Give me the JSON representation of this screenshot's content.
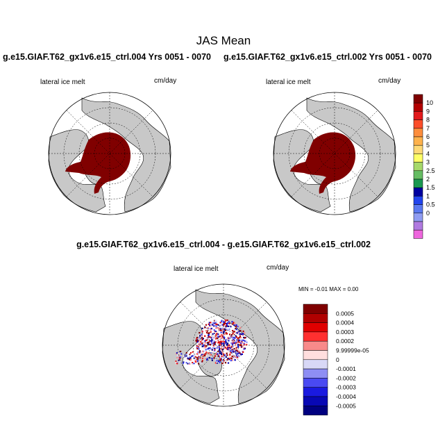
{
  "title": "JAS Mean",
  "panels": [
    {
      "title": "g.e15.GIAF.T62_gx1v6.e15_ctrl.004  Yrs 0051 - 0070",
      "variable": "lateral ice melt",
      "units": "cm/day"
    },
    {
      "title": "g.e15.GIAF.T62_gx1v6.e15_ctrl.002  Yrs 0051 - 0070",
      "variable": "lateral ice melt",
      "units": "cm/day"
    }
  ],
  "diff_panel": {
    "title": "g.e15.GIAF.T62_gx1v6.e15_ctrl.004 - g.e15.GIAF.T62_gx1v6.e15_ctrl.002",
    "variable": "lateral ice melt",
    "units": "cm/day",
    "minmax": "MIN =  -0.01 MAX =   0.00"
  },
  "colorbar_top": {
    "labels": [
      "10",
      "9",
      "8",
      "7",
      "6",
      "5",
      "4",
      "3",
      "2.5",
      "2",
      "1.5",
      "1",
      "0.5",
      "0"
    ],
    "colors": [
      "#7f0000",
      "#b30000",
      "#e31a1c",
      "#fc4e2a",
      "#fd8d3c",
      "#feb24c",
      "#fed976",
      "#ffff66",
      "#a6d96a",
      "#66bd63",
      "#1a9850",
      "#0000a0",
      "#2244ee",
      "#5a78f0",
      "#8f9cf2",
      "#b07ae0",
      "#ee66dd"
    ]
  },
  "colorbar_diff": {
    "labels": [
      "0.0005",
      "0.0004",
      "0.0003",
      "0.0002",
      "9.99999e-05",
      "0",
      "-0.0001",
      "-0.0002",
      "-0.0003",
      "-0.0004",
      "-0.0005"
    ],
    "colors": [
      "#7f0000",
      "#b00000",
      "#e00000",
      "#ff3030",
      "#f88a8a",
      "#ffdede",
      "#d8d8f6",
      "#8e8ef4",
      "#4a4af2",
      "#1a1ae0",
      "#0808b4",
      "#000080"
    ]
  },
  "colors": {
    "land": "#c8c8c8",
    "ice_melt": "#800000"
  }
}
